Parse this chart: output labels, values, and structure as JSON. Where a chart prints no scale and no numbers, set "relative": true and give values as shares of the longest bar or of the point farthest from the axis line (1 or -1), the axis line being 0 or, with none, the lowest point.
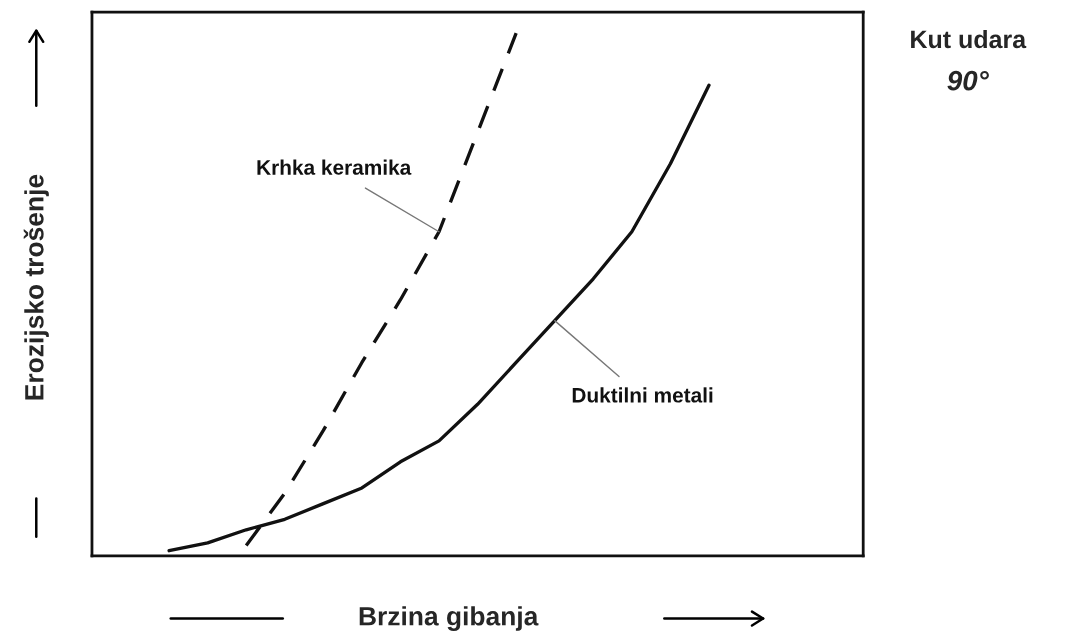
{
  "chart_data": {
    "type": "line",
    "relative": true,
    "xlabel": "Brzina gibanja",
    "ylabel": "Erozijsko trošenje",
    "legend": false,
    "annotations": [
      "Kut udara",
      "90°"
    ],
    "categories": [
      null,
      null,
      null,
      null,
      null,
      null,
      null,
      null,
      null,
      null,
      null,
      null,
      null,
      null,
      null,
      null,
      null,
      null,
      null,
      null,
      null
    ],
    "series": [
      {
        "name": "Krhka keramika",
        "color": "#111111",
        "line_style": "dashed",
        "values": [
          null,
          null,
          null,
          null,
          0.02,
          0.12,
          0.24,
          0.37,
          0.49,
          0.62,
          0.81,
          1.0,
          null,
          null,
          null,
          null,
          null,
          null,
          null,
          null,
          null
        ]
      },
      {
        "name": "Duktilni metali",
        "color": "#111111",
        "line_style": "solid",
        "values": [
          null,
          null,
          0.01,
          0.025,
          0.05,
          0.07,
          0.1,
          0.13,
          0.18,
          0.22,
          0.29,
          0.37,
          0.45,
          0.53,
          0.62,
          0.75,
          0.9,
          null,
          null,
          null,
          null
        ]
      }
    ]
  }
}
